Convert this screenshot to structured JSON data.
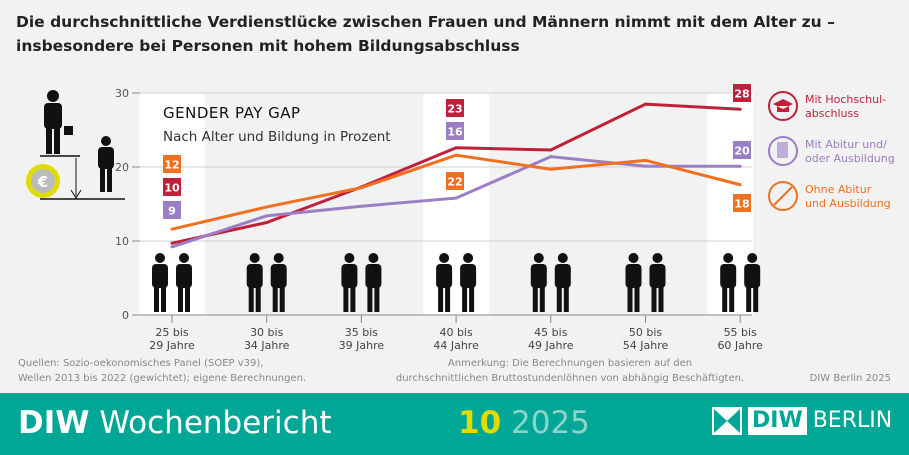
{
  "title": "Die durchschnittliche Verdienstlücke zwischen Frauen und Männern nimmt mit dem Alter zu – insbesondere bei Personen mit hohem Bildungsabschluss",
  "chart_data": {
    "type": "line",
    "title": "GENDER PAY GAP",
    "subtitle": "Nach Alter und Bildung in Prozent",
    "categories": [
      "25 bis\n29 Jahre",
      "30 bis\n34 Jahre",
      "35 bis\n39 Jahre",
      "40 bis\n44 Jahre",
      "45 bis\n49 Jahre",
      "50 bis\n54 Jahre",
      "55 bis\n60 Jahre"
    ],
    "category_lines": [
      [
        "25 bis",
        "29 Jahre"
      ],
      [
        "30 bis",
        "34 Jahre"
      ],
      [
        "35 bis",
        "39 Jahre"
      ],
      [
        "40 bis",
        "44 Jahre"
      ],
      [
        "45 bis",
        "49 Jahre"
      ],
      [
        "50 bis",
        "54 Jahre"
      ],
      [
        "55 bis",
        "60 Jahre"
      ]
    ],
    "ylim": [
      0,
      30
    ],
    "yticks": [
      0,
      10,
      20,
      30
    ],
    "grid": true,
    "legend": "right",
    "series": [
      {
        "name": "Mit Hochschul-\nabschluss",
        "name_lines": [
          "Mit Hochschul-",
          "abschluss"
        ],
        "icon": "graduation-cap-icon",
        "color": "#c0213a",
        "values": [
          9.7,
          12.5,
          17.3,
          22.6,
          22.3,
          28.5,
          27.8
        ],
        "labels": {
          "0": "10",
          "3": "23",
          "6": "28"
        }
      },
      {
        "name": "Mit Abitur und/\noder Ausbildung",
        "name_lines": [
          "Mit Abitur und/",
          "oder Ausbildung"
        ],
        "icon": "certificate-icon",
        "color": "#9b7ec4",
        "values": [
          9.2,
          13.4,
          14.7,
          15.8,
          21.4,
          20.1,
          20.1
        ],
        "labels": {
          "0": "9",
          "3": "16",
          "6": "20"
        }
      },
      {
        "name": "Ohne Abitur\nund Ausbildung",
        "name_lines": [
          "Ohne Abitur",
          "und Ausbildung"
        ],
        "icon": "no-symbol-icon",
        "color": "#f07020",
        "values": [
          11.6,
          14.6,
          17.2,
          21.6,
          19.7,
          20.9,
          17.6
        ],
        "labels": {
          "0": "12",
          "3": "22",
          "6": "18"
        }
      }
    ]
  },
  "sources": [
    "Quellen: Sozio-oekonomisches Panel (SOEP v39),",
    "Wellen 2013 bis 2022 (gewichtet); eigene Berechnungen."
  ],
  "note": [
    "Anmerkung: Die Berechnungen basieren auf den",
    "durchschnittlichen Bruttostundenlöhnen von abhängig Beschäftigten."
  ],
  "credit": "DIW Berlin 2025",
  "footer": {
    "brand_bold": "DIW",
    "brand": "Wochenbericht",
    "issue": "10",
    "year": "2025",
    "logo_text": "DIW",
    "logo_city": "BERLIN"
  },
  "colors": {
    "footer": "#00a696",
    "issue": "#e1dc00",
    "year": "#8fd3c9"
  }
}
